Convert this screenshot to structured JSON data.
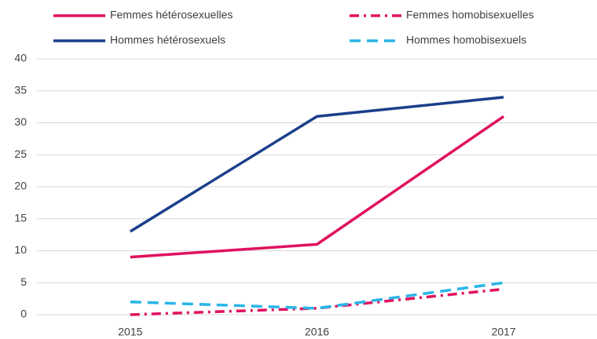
{
  "chart_data": {
    "type": "line",
    "categories": [
      "2015",
      "2016",
      "2017"
    ],
    "series": [
      {
        "name": "Femmes hétérosexuelles",
        "color": "#e0115f",
        "style": "solid",
        "values": [
          9,
          11,
          31
        ]
      },
      {
        "name": "Femmes homobisexuelles",
        "color": "#e0115f",
        "style": "dashdot",
        "values": [
          0,
          1,
          4
        ]
      },
      {
        "name": "Hommes hétérosexuels",
        "color": "#1b3f8b",
        "style": "solid",
        "values": [
          13,
          31,
          34
        ]
      },
      {
        "name": "Hommes homobisexuels",
        "color": "#29b5e8",
        "style": "dashed",
        "values": [
          2,
          1,
          5
        ]
      }
    ],
    "ylim": [
      0,
      40
    ],
    "yticks": [
      0,
      5,
      10,
      15,
      20,
      25,
      30,
      35,
      40
    ],
    "grid": true
  }
}
